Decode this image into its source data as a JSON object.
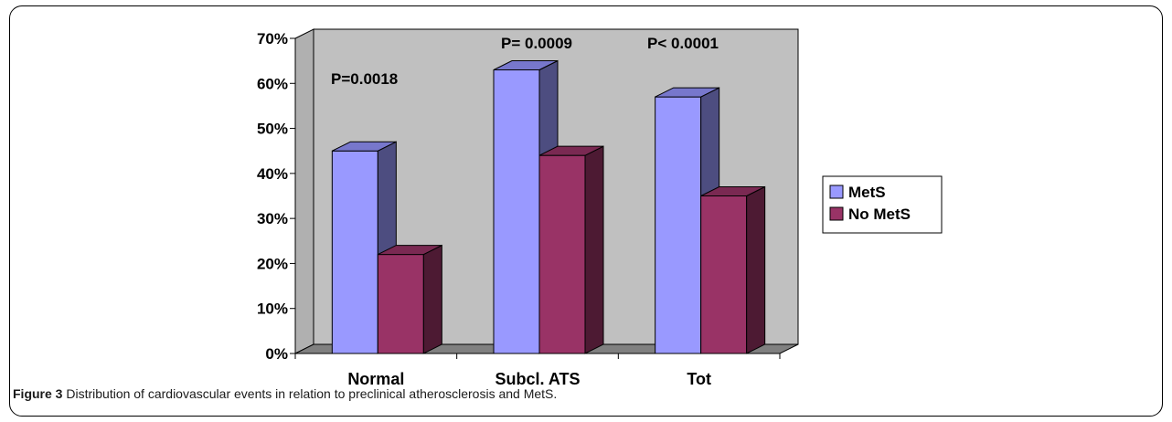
{
  "chart_data": {
    "type": "bar",
    "categories": [
      "Normal",
      "Subcl. ATS",
      "Tot"
    ],
    "series": [
      {
        "name": "MetS",
        "values": [
          45,
          63,
          57
        ],
        "color": "#9999ff",
        "side_color": "#4d4d80",
        "top_color": "#7777cc"
      },
      {
        "name": "No MetS",
        "values": [
          22,
          44,
          35
        ],
        "color": "#993366",
        "side_color": "#4d1a33",
        "top_color": "#7a2952"
      }
    ],
    "ylim": [
      0,
      70
    ],
    "yticks": [
      "0%",
      "10%",
      "20%",
      "30%",
      "40%",
      "50%",
      "60%",
      "70%"
    ],
    "tick_values": [
      0,
      10,
      20,
      30,
      40,
      50,
      60,
      70
    ],
    "annotations": [
      "P=0.0018",
      "P= 0.0009",
      "P< 0.0001"
    ],
    "wall_color": "#c0c0c0",
    "floor_color": "#808080",
    "legend_position": "right",
    "grid": false
  },
  "caption": {
    "label": "Figure 3",
    "text": " Distribution of cardiovascular events in relation to preclinical atherosclerosis and MetS."
  }
}
